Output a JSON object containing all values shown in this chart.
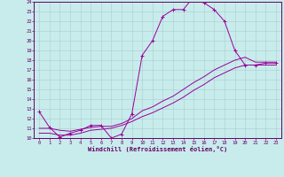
{
  "xlabel": "Windchill (Refroidissement éolien,°C)",
  "bg_color": "#c8ecec",
  "line_color": "#990099",
  "grid_color": "#aacccc",
  "spine_color": "#660066",
  "tick_color": "#660066",
  "xlabel_color": "#660066",
  "xlim": [
    -0.5,
    23.5
  ],
  "ylim": [
    10,
    24
  ],
  "yticks": [
    10,
    11,
    12,
    13,
    14,
    15,
    16,
    17,
    18,
    19,
    20,
    21,
    22,
    23,
    24
  ],
  "xticks": [
    0,
    1,
    2,
    3,
    4,
    5,
    6,
    7,
    8,
    9,
    10,
    11,
    12,
    13,
    14,
    15,
    16,
    17,
    18,
    19,
    20,
    21,
    22,
    23
  ],
  "curve1_x": [
    0,
    1,
    2,
    3,
    4,
    5,
    6,
    7,
    8,
    9,
    10,
    11,
    12,
    13,
    14,
    15,
    16,
    17,
    18,
    19,
    20,
    21,
    22,
    23
  ],
  "curve1_y": [
    12.7,
    11.1,
    10.1,
    10.5,
    10.8,
    11.3,
    11.3,
    10.0,
    10.4,
    12.5,
    18.5,
    20.0,
    22.5,
    23.2,
    23.2,
    24.5,
    23.9,
    23.2,
    22.0,
    19.0,
    17.5,
    17.5,
    17.7,
    17.7
  ],
  "curve2_x": [
    0,
    1,
    2,
    3,
    4,
    5,
    6,
    7,
    8,
    9,
    10,
    11,
    12,
    13,
    14,
    15,
    16,
    17,
    18,
    19,
    20,
    21,
    22,
    23
  ],
  "curve2_y": [
    11.0,
    11.0,
    10.8,
    10.7,
    10.9,
    11.1,
    11.2,
    11.2,
    11.5,
    12.0,
    12.8,
    13.2,
    13.8,
    14.3,
    15.0,
    15.7,
    16.3,
    17.0,
    17.5,
    18.0,
    18.3,
    17.8,
    17.8,
    17.8
  ],
  "curve3_x": [
    0,
    1,
    2,
    3,
    4,
    5,
    6,
    7,
    8,
    9,
    10,
    11,
    12,
    13,
    14,
    15,
    16,
    17,
    18,
    19,
    20,
    21,
    22,
    23
  ],
  "curve3_y": [
    10.5,
    10.5,
    10.3,
    10.3,
    10.5,
    10.8,
    10.9,
    11.0,
    11.3,
    11.7,
    12.2,
    12.6,
    13.1,
    13.6,
    14.2,
    14.9,
    15.5,
    16.2,
    16.7,
    17.2,
    17.5,
    17.5,
    17.5,
    17.5
  ]
}
